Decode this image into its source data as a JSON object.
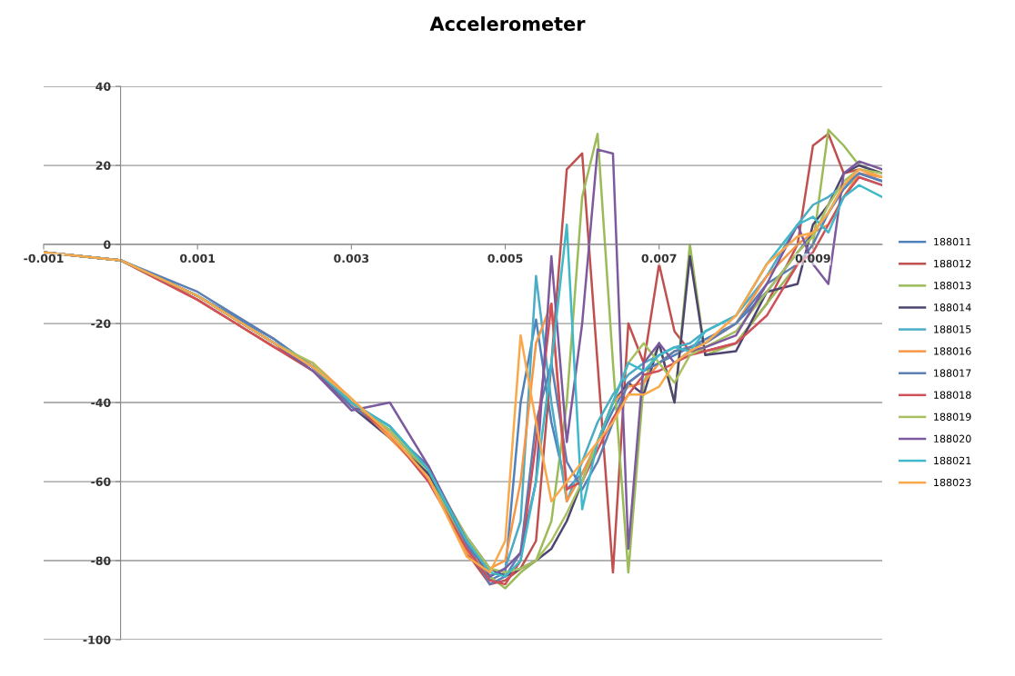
{
  "chart_data": {
    "type": "line",
    "title": "Accelerometer",
    "x": [
      -0.001,
      0,
      0.001,
      0.002,
      0.0025,
      0.003,
      0.0035,
      0.004,
      0.0045,
      0.0048,
      0.005,
      0.0052,
      0.0054,
      0.0056,
      0.0058,
      0.006,
      0.0062,
      0.0064,
      0.0066,
      0.0068,
      0.007,
      0.0072,
      0.0074,
      0.0076,
      0.008,
      0.0084,
      0.0088,
      0.009,
      0.0092,
      0.0094,
      0.0096,
      0.0099
    ],
    "series": [
      {
        "name": "188011",
        "color": "#4f81bd",
        "values": [
          -2,
          -4,
          -13,
          -24,
          -31,
          -40,
          -46,
          -57,
          -76,
          -85,
          -83,
          -40,
          -19,
          -45,
          -62,
          -58,
          -50,
          -42,
          -35,
          -32,
          -30,
          -28,
          -26,
          -24,
          -20,
          -12,
          -2,
          3,
          8,
          14,
          18,
          16
        ]
      },
      {
        "name": "188012",
        "color": "#c0504d",
        "values": [
          -2,
          -4,
          -14,
          -26,
          -32,
          -41,
          -48,
          -59,
          -78,
          -86,
          -85,
          -82,
          -75,
          -30,
          19,
          23,
          -30,
          -83,
          -20,
          -30,
          -5,
          -22,
          -27,
          -27,
          -25,
          -15,
          0,
          25,
          28,
          18,
          19,
          17
        ]
      },
      {
        "name": "188013",
        "color": "#9bbb59",
        "values": [
          -2,
          -4,
          -13,
          -25,
          -31,
          -40,
          -47,
          -58,
          -77,
          -84,
          -87,
          -83,
          -80,
          -70,
          -40,
          12,
          28,
          -30,
          -83,
          -35,
          -25,
          -40,
          0,
          -28,
          -25,
          -15,
          -5,
          0,
          29,
          25,
          20,
          18
        ]
      },
      {
        "name": "188014",
        "color": "#4d4570",
        "values": [
          -2,
          -4,
          -13,
          -25,
          -31,
          -41,
          -49,
          -58,
          -74,
          -82,
          -84,
          -82,
          -80,
          -77,
          -70,
          -60,
          -50,
          -40,
          -35,
          -38,
          -25,
          -40,
          -3,
          -28,
          -27,
          -12,
          -10,
          5,
          10,
          18,
          20,
          18
        ]
      },
      {
        "name": "188015",
        "color": "#4bacc6",
        "values": [
          -2,
          -4,
          -13,
          -25,
          -31,
          -40,
          -47,
          -57,
          -76,
          -84,
          -82,
          -70,
          -8,
          -40,
          -65,
          -55,
          -45,
          -38,
          -33,
          -30,
          -28,
          -26,
          -25,
          -22,
          -18,
          -8,
          5,
          10,
          12,
          15,
          17,
          15
        ]
      },
      {
        "name": "188016",
        "color": "#f79646",
        "values": [
          -2,
          -4,
          -14,
          -26,
          -30,
          -39,
          -49,
          -59,
          -78,
          -82,
          -80,
          -60,
          -25,
          -15,
          -65,
          -58,
          -50,
          -40,
          -36,
          -35,
          -30,
          -27,
          -26,
          -25,
          -20,
          -8,
          0,
          3,
          5,
          12,
          18,
          17
        ]
      },
      {
        "name": "188017",
        "color": "#5b7fb5",
        "values": [
          -2,
          -4,
          -12,
          -24,
          -31,
          -41,
          -47,
          -56,
          -76,
          -86,
          -84,
          -78,
          -45,
          -30,
          -55,
          -62,
          -55,
          -45,
          -35,
          -32,
          -30,
          -27,
          -26,
          -25,
          -20,
          -10,
          -5,
          0,
          8,
          15,
          18,
          16
        ]
      },
      {
        "name": "188018",
        "color": "#d0505a",
        "values": [
          -2,
          -4,
          -14,
          -26,
          -31,
          -40,
          -48,
          -60,
          -77,
          -85,
          -86,
          -80,
          -50,
          -15,
          -62,
          -60,
          -52,
          -44,
          -38,
          -33,
          -32,
          -30,
          -28,
          -27,
          -25,
          -18,
          -5,
          -2,
          5,
          12,
          17,
          15
        ]
      },
      {
        "name": "188019",
        "color": "#a8c060",
        "values": [
          -2,
          -4,
          -13,
          -25,
          -30,
          -40,
          -47,
          -57,
          -74,
          -82,
          -83,
          -82,
          -80,
          -75,
          -68,
          -60,
          -50,
          -40,
          -30,
          -25,
          -30,
          -35,
          -28,
          -26,
          -22,
          -12,
          -2,
          2,
          10,
          16,
          19,
          18
        ]
      },
      {
        "name": "188020",
        "color": "#7d5a9e",
        "values": [
          -2,
          -4,
          -13,
          -25,
          -32,
          -42,
          -40,
          -56,
          -75,
          -84,
          -82,
          -78,
          -60,
          -3,
          -50,
          -20,
          24,
          23,
          -77,
          -30,
          -25,
          -30,
          -27,
          -26,
          -23,
          -10,
          5,
          -5,
          -10,
          18,
          21,
          19
        ]
      },
      {
        "name": "188021",
        "color": "#3fb8c8",
        "values": [
          -2,
          -4,
          -13,
          -25,
          -31,
          -40,
          -46,
          -57,
          -75,
          -83,
          -84,
          -80,
          -60,
          -30,
          5,
          -67,
          -50,
          -40,
          -30,
          -32,
          -28,
          -26,
          -27,
          -22,
          -18,
          -5,
          5,
          7,
          3,
          12,
          15,
          12
        ]
      },
      {
        "name": "188023",
        "color": "#f9a84a",
        "values": [
          -2,
          -4,
          -13,
          -25,
          -31,
          -39,
          -48,
          -59,
          -79,
          -83,
          -75,
          -23,
          -45,
          -65,
          -60,
          -55,
          -50,
          -45,
          -38,
          -38,
          -36,
          -30,
          -27,
          -25,
          -18,
          -5,
          2,
          3,
          8,
          15,
          19,
          17
        ]
      }
    ],
    "xlim": [
      -0.001,
      0.0099
    ],
    "xticks": [
      -0.001,
      0.001,
      0.003,
      0.005,
      0.007,
      0.009
    ],
    "ylim": [
      -100,
      40
    ],
    "yticks": [
      -100,
      -80,
      -60,
      -40,
      -20,
      0,
      20,
      40
    ],
    "grid": "y",
    "legend": "right",
    "marker": "none",
    "line_style": "solid"
  }
}
